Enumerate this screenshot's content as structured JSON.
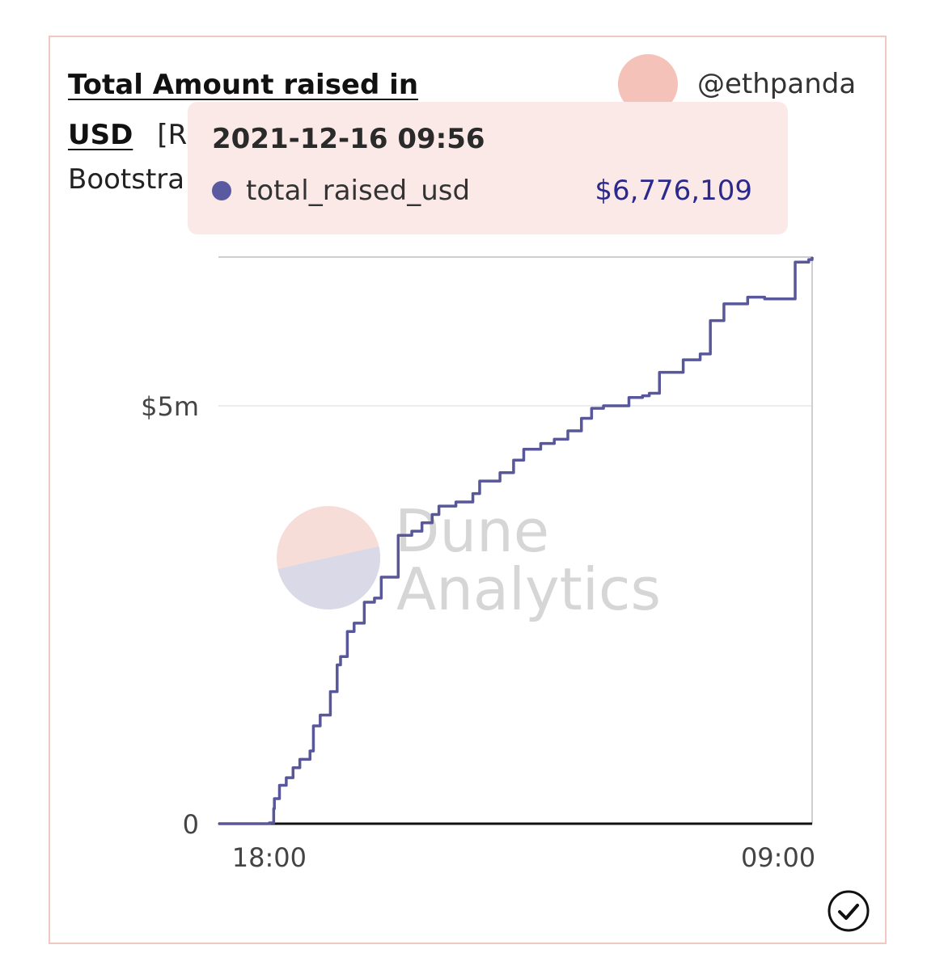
{
  "header": {
    "title_line1": "Total Amount raised in",
    "title_line2": "USD",
    "title_tag": "[R",
    "subtitle": "Bootstra",
    "author": "@ethpanda"
  },
  "tooltip": {
    "date": "2021-12-16 09:56",
    "series": "total_raised_usd",
    "value": "$6,776,109"
  },
  "watermark": {
    "line1": "Dune",
    "line2": "Analytics"
  },
  "colors": {
    "line": "#58579a",
    "accent": "#f4c2b8",
    "tooltip_bg": "#fbe9e7",
    "tooltip_value": "#2b2a8c"
  },
  "icons": {
    "status": "check-circle-icon"
  },
  "chart_data": {
    "type": "line",
    "series": [
      {
        "name": "total_raised_usd",
        "x": [
          -1.5,
          -0.3,
          0.0,
          0.13,
          0.15,
          0.3,
          0.5,
          0.7,
          0.9,
          1.2,
          1.3,
          1.5,
          1.8,
          2.0,
          2.1,
          2.3,
          2.5,
          2.8,
          3.1,
          3.3,
          3.8,
          4.2,
          4.5,
          4.8,
          5.0,
          5.5,
          6.0,
          6.2,
          6.8,
          7.2,
          7.5,
          8.0,
          8.4,
          8.8,
          9.2,
          9.5,
          9.85,
          10.6,
          11.0,
          11.2,
          11.5,
          12.2,
          12.7,
          13.0,
          13.4,
          14.1,
          14.6,
          15.5,
          15.9,
          16.0
        ],
        "y": [
          0,
          0,
          0.01,
          0.18,
          0.3,
          0.46,
          0.55,
          0.67,
          0.77,
          0.87,
          1.17,
          1.3,
          1.58,
          1.9,
          2.0,
          2.3,
          2.4,
          2.65,
          2.7,
          2.95,
          3.45,
          3.5,
          3.6,
          3.7,
          3.8,
          3.85,
          3.95,
          4.1,
          4.2,
          4.35,
          4.48,
          4.55,
          4.6,
          4.7,
          4.85,
          4.97,
          5.0,
          5.1,
          5.12,
          5.15,
          5.4,
          5.55,
          5.62,
          6.02,
          6.22,
          6.3,
          6.28,
          6.72,
          6.75,
          6.78
        ]
      }
    ],
    "x_tick_labels": [
      "18:00",
      "09:00"
    ],
    "x_ticks": [
      0,
      15
    ],
    "xlim": [
      -1.5,
      16
    ],
    "y_tick_labels": [
      "0",
      "$5m"
    ],
    "y_ticks": [
      0,
      5
    ],
    "ylim": [
      0,
      6.78
    ],
    "grid": true
  }
}
